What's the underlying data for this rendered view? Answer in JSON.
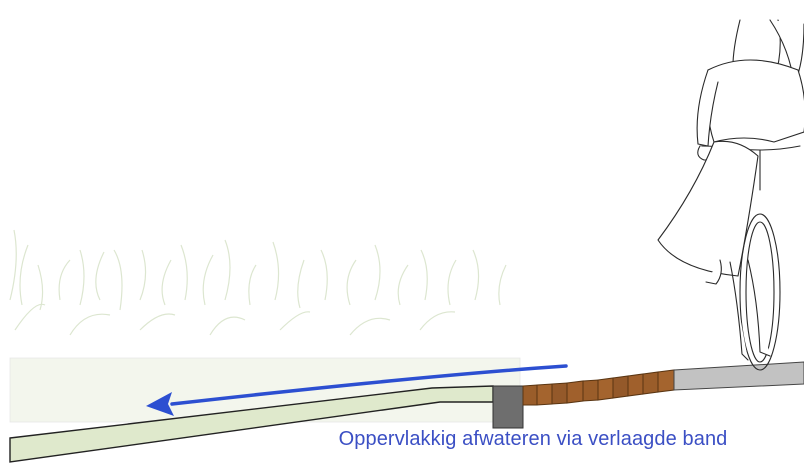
{
  "caption": "Oppervlakkig afwateren via verlaagde band",
  "colors": {
    "caption": "#3b4fc4",
    "arrow": "#2c4fd1",
    "swale_fill": "#dfe9cc",
    "grass": "#cfdcc0",
    "curb": "#6e6e6e",
    "pavers": "#9a5d2a",
    "asphalt": "#c2c2c2",
    "line": "#222222"
  },
  "icons": {
    "cyclist": "cyclist-illustration",
    "arrow": "water-flow-arrow"
  }
}
